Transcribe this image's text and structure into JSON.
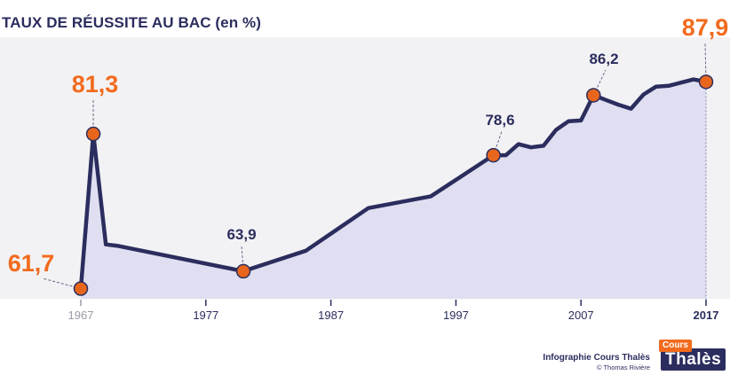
{
  "header": {
    "title": "TAUX DE RÉUSSITE AU BAC (en %)"
  },
  "credit": {
    "main": "Infographie Cours Thalès",
    "sub": "© Thomas Rivière"
  },
  "logo": {
    "top": "Cours",
    "main": "Thalès"
  },
  "colors": {
    "line": "#2b2d5e",
    "area": "#dfdff1",
    "background": "#f2f2f4",
    "highlight": "#f26b1d",
    "marker": "#e8661c",
    "axis_muted": "#9a9aa6"
  },
  "chart_data": {
    "type": "line",
    "title": "TAUX DE RÉUSSITE AU BAC (en %)",
    "xlabel": "",
    "ylabel": "",
    "xlim": [
      1967,
      2017
    ],
    "ylim": [
      60,
      90
    ],
    "grid": false,
    "legend": "none",
    "x_ticks": [
      {
        "year": 1967,
        "label": "1967"
      },
      {
        "year": 1977,
        "label": "1977"
      },
      {
        "year": 1987,
        "label": "1987"
      },
      {
        "year": 1997,
        "label": "1997"
      },
      {
        "year": 2007,
        "label": "2007"
      },
      {
        "year": 2017,
        "label": "2017"
      }
    ],
    "series": [
      {
        "points": [
          {
            "x": 1967,
            "y": 61.7
          },
          {
            "x": 1968,
            "y": 81.3
          },
          {
            "x": 1969,
            "y": 67.3
          },
          {
            "x": 1970,
            "y": 67.1
          },
          {
            "x": 1980,
            "y": 63.9
          },
          {
            "x": 1985,
            "y": 66.5
          },
          {
            "x": 1990,
            "y": 71.9
          },
          {
            "x": 1995,
            "y": 73.4
          },
          {
            "x": 2000,
            "y": 78.6
          },
          {
            "x": 2001,
            "y": 78.6
          },
          {
            "x": 2002,
            "y": 80.0
          },
          {
            "x": 2003,
            "y": 79.6
          },
          {
            "x": 2004,
            "y": 79.8
          },
          {
            "x": 2005,
            "y": 81.8
          },
          {
            "x": 2006,
            "y": 82.9
          },
          {
            "x": 2007,
            "y": 83.0
          },
          {
            "x": 2008,
            "y": 86.2
          },
          {
            "x": 2009,
            "y": 85.6
          },
          {
            "x": 2010,
            "y": 85.0
          },
          {
            "x": 2011,
            "y": 84.5
          },
          {
            "x": 2012,
            "y": 86.3
          },
          {
            "x": 2013,
            "y": 87.3
          },
          {
            "x": 2014,
            "y": 87.4
          },
          {
            "x": 2015,
            "y": 87.8
          },
          {
            "x": 2016,
            "y": 88.2
          },
          {
            "x": 2017,
            "y": 87.9
          }
        ]
      }
    ],
    "annotations": [
      {
        "x": 1967,
        "y": 61.7,
        "label": "61,7",
        "emphasis": true
      },
      {
        "x": 1968,
        "y": 81.3,
        "label": "81,3",
        "emphasis": true
      },
      {
        "x": 1980,
        "y": 63.9,
        "label": "63,9",
        "emphasis": false
      },
      {
        "x": 2000,
        "y": 78.6,
        "label": "78,6",
        "emphasis": false
      },
      {
        "x": 2008,
        "y": 86.2,
        "label": "86,2",
        "emphasis": false
      },
      {
        "x": 2017,
        "y": 87.9,
        "label": "87,9",
        "emphasis": true
      }
    ]
  }
}
